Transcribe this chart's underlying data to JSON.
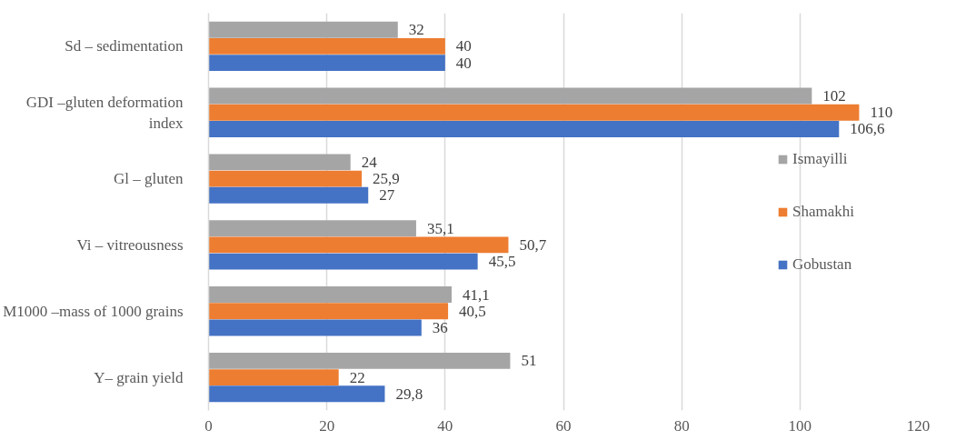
{
  "chart_data": {
    "type": "bar",
    "orientation": "horizontal",
    "categories": [
      "Sd – sedimentation",
      "GDI –gluten deformation index",
      "Gl – gluten",
      "Vi – vitreousness",
      "M1000 –mass of 1000 grains",
      "Y– grain yield"
    ],
    "series": [
      {
        "name": "Ismayilli",
        "color": "#a5a5a5",
        "values": [
          32,
          102,
          24,
          35.1,
          41.1,
          51
        ],
        "value_labels": [
          "32",
          "102",
          "24",
          "35,1",
          "41,1",
          "51"
        ]
      },
      {
        "name": "Shamakhi",
        "color": "#ed7d31",
        "values": [
          40,
          110,
          25.9,
          50.7,
          40.5,
          22
        ],
        "value_labels": [
          "40",
          "110",
          "25,9",
          "50,7",
          "40,5",
          "22"
        ]
      },
      {
        "name": "Gobustan",
        "color": "#4472c4",
        "values": [
          40,
          106.6,
          27,
          45.5,
          36,
          29.8
        ],
        "value_labels": [
          "40",
          "106,6",
          "27",
          "45,5",
          "36",
          "29,8"
        ]
      }
    ],
    "xlim": [
      0,
      120
    ],
    "xticks": [
      0,
      20,
      40,
      60,
      80,
      100,
      120
    ],
    "grid": "x",
    "legend": "right"
  }
}
